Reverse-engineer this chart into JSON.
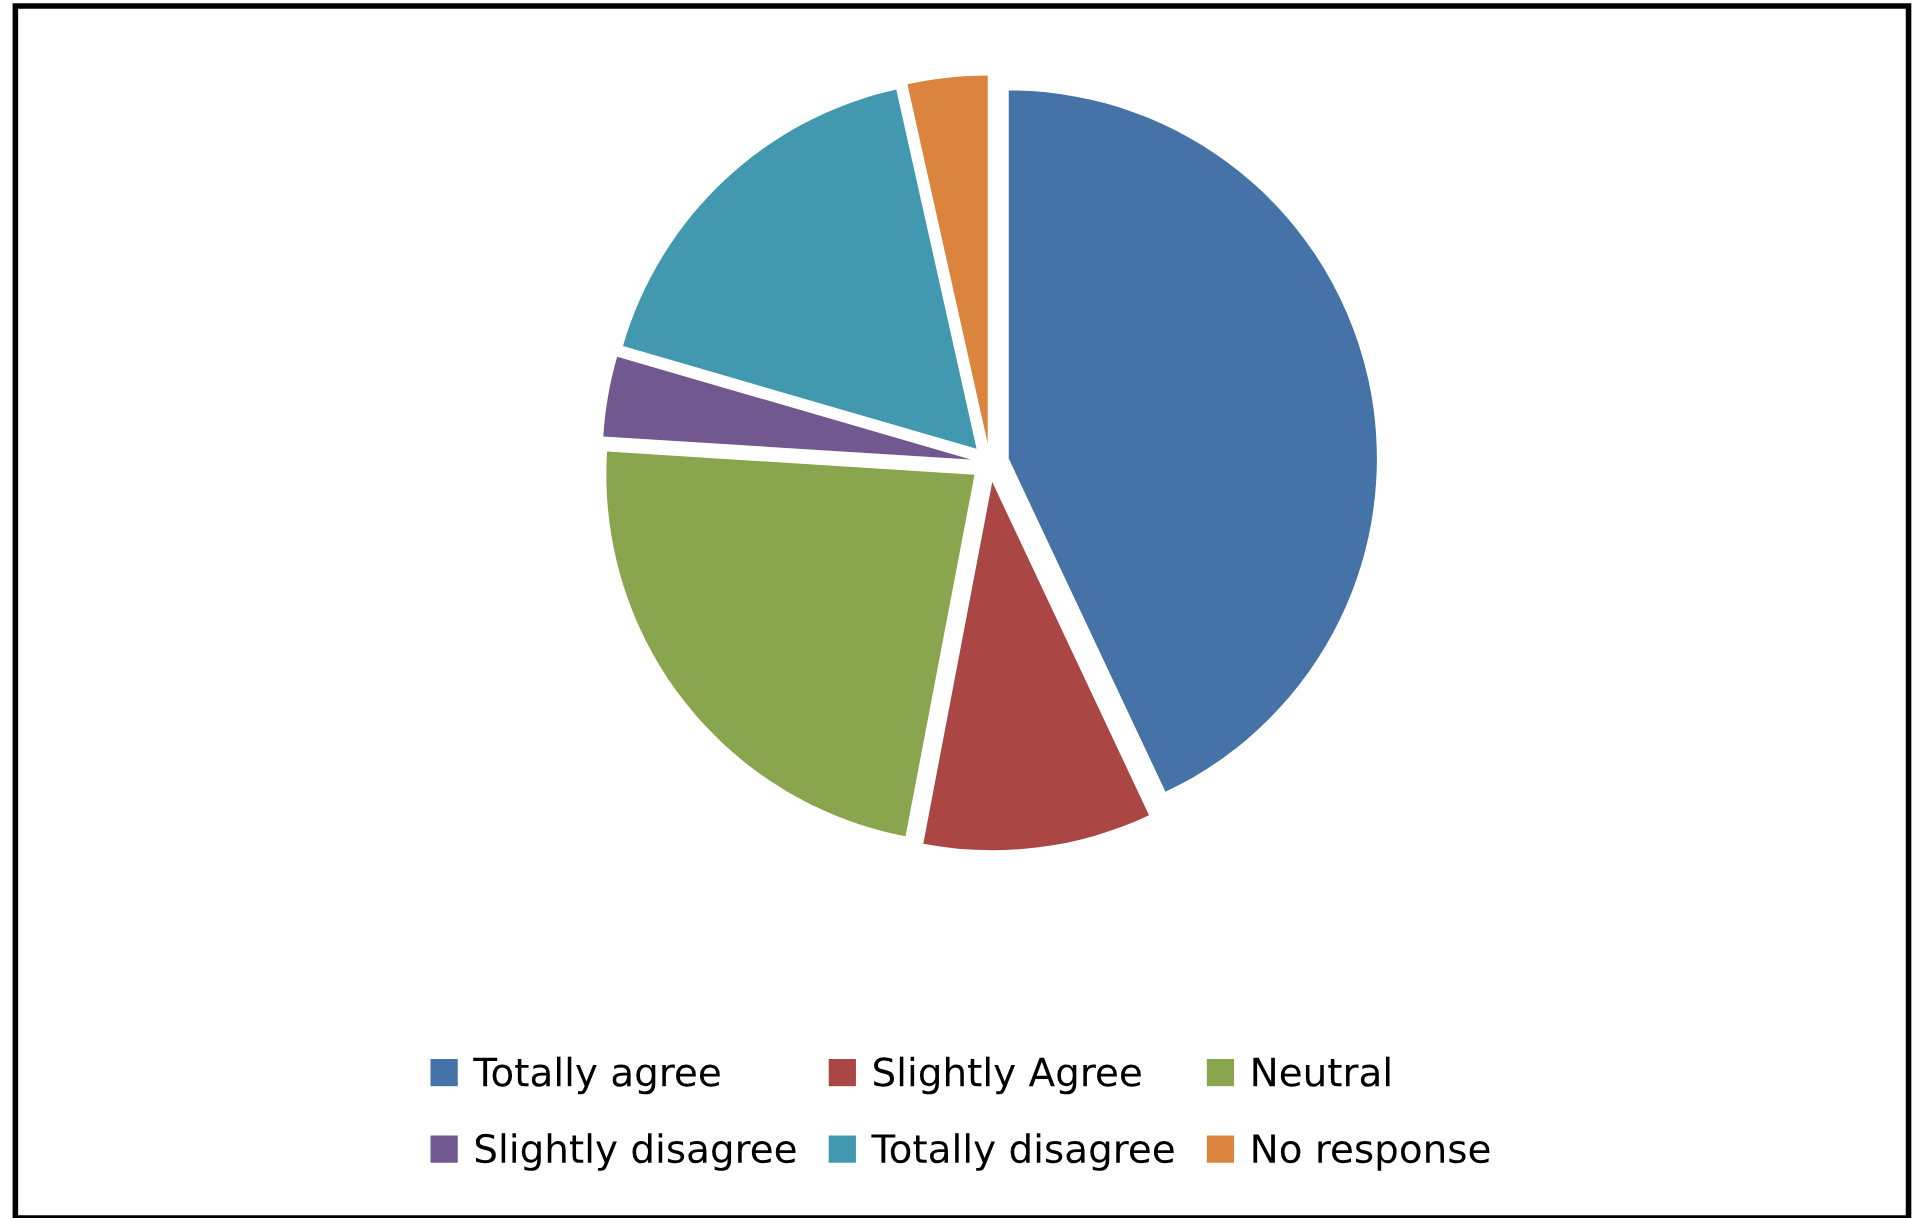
{
  "chart_data": {
    "type": "pie",
    "categories": [
      "Totally agree",
      "Slightly Agree",
      "Neutral",
      "Slightly disagree",
      "Totally disagree",
      "No response"
    ],
    "values": [
      43,
      10,
      23,
      3.5,
      17,
      3.5
    ],
    "colors": [
      "#4572a7",
      "#aa4643",
      "#89a54e",
      "#71588f",
      "#4198af",
      "#db843d"
    ],
    "legend": "bottom"
  }
}
